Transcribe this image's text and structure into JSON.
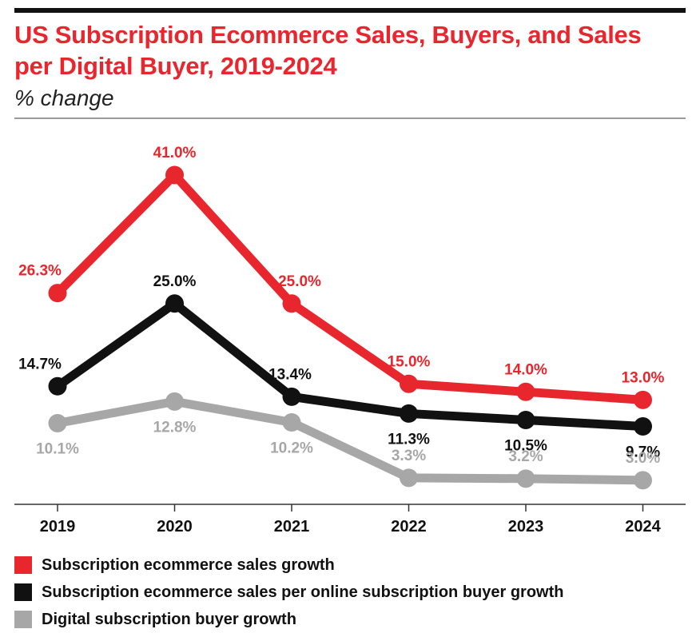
{
  "header": {
    "title": "US Subscription Ecommerce Sales, Buyers, and Sales per Digital Buyer, 2019-2024",
    "subtitle": "% change"
  },
  "colors": {
    "accent": "#e8262d",
    "black": "#111111",
    "gray": "#a7a7a7"
  },
  "chart_data": {
    "type": "line",
    "title": "US Subscription Ecommerce Sales, Buyers, and Sales per Digital Buyer, 2019-2024",
    "subtitle": "% change",
    "categories": [
      "2019",
      "2020",
      "2021",
      "2022",
      "2023",
      "2024"
    ],
    "ylim": [
      0,
      50
    ],
    "grid": false,
    "legend_position": "bottom",
    "series": [
      {
        "name": "Subscription ecommerce sales growth",
        "color": "#e8262d",
        "values": [
          26.3,
          41.0,
          25.0,
          15.0,
          14.0,
          13.0
        ],
        "labels": [
          "26.3%",
          "41.0%",
          "25.0%",
          "15.0%",
          "14.0%",
          "13.0%"
        ]
      },
      {
        "name": "Subscription ecommerce sales per online subscription buyer growth",
        "color": "#111111",
        "values": [
          14.7,
          25.0,
          13.4,
          11.3,
          10.5,
          9.7
        ],
        "labels": [
          "14.7%",
          "25.0%",
          "13.4%",
          "11.3%",
          "10.5%",
          "9.7%"
        ]
      },
      {
        "name": "Digital subscription buyer growth",
        "color": "#a7a7a7",
        "values": [
          10.1,
          12.8,
          10.2,
          3.3,
          3.2,
          3.0
        ],
        "labels": [
          "10.1%",
          "12.8%",
          "10.2%",
          "3.3%",
          "3.2%",
          "3.0%"
        ]
      }
    ]
  }
}
